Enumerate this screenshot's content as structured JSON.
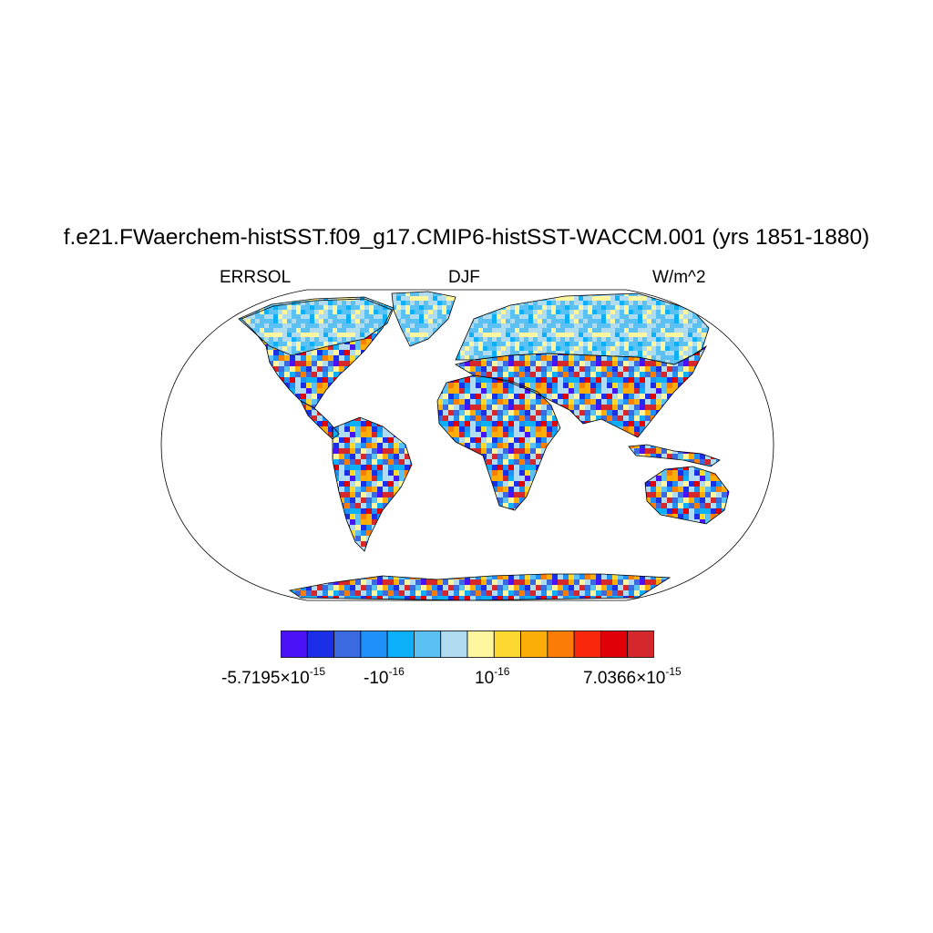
{
  "title": "f.e21.FWaerchem-histSST.f09_g17.CMIP6-histSST-WACCM.001 (yrs 1851-1880)",
  "left_label": "ERRSOL",
  "center_label": "DJF",
  "right_label": "W/m^2",
  "colorbar": {
    "colors": [
      "#4b12f8",
      "#1b2ee8",
      "#3b6ae0",
      "#1e90f7",
      "#0bb0f8",
      "#5bc1f2",
      "#b0dcf1",
      "#fff7a0",
      "#fdd830",
      "#fcae08",
      "#fb7c07",
      "#f9280d",
      "#e10008",
      "#d4282d"
    ],
    "labels": {
      "min": {
        "mantissa": "-5.7195",
        "times": "×10",
        "exp": "-15"
      },
      "neg": {
        "base": "-10",
        "exp": "-16"
      },
      "pos": {
        "base": "10",
        "exp": "-16"
      },
      "max": {
        "mantissa": "7.0366",
        "times": "×10",
        "exp": "-15"
      }
    }
  },
  "map": {
    "projection": "robinson",
    "fill_scheme": "noisy-diverging",
    "ocean_color": "#ffffff",
    "coastline_color": "#000000"
  }
}
